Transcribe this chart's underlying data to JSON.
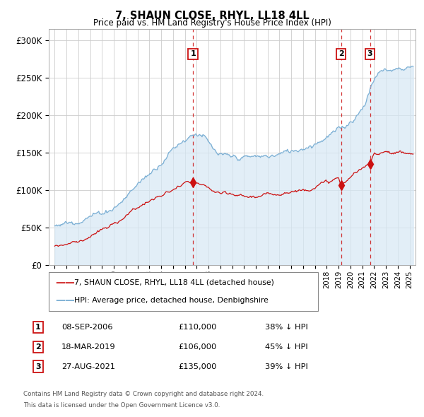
{
  "title": "7, SHAUN CLOSE, RHYL, LL18 4LL",
  "subtitle": "Price paid vs. HM Land Registry's House Price Index (HPI)",
  "hpi_color": "#7bafd4",
  "hpi_fill_color": "#d6e8f5",
  "price_color": "#cc1111",
  "dashed_line_color": "#cc1111",
  "background_color": "#ffffff",
  "grid_color": "#cccccc",
  "ylim": [
    0,
    315000
  ],
  "yticks": [
    0,
    50000,
    100000,
    150000,
    200000,
    250000,
    300000
  ],
  "ytick_labels": [
    "£0",
    "£50K",
    "£100K",
    "£150K",
    "£200K",
    "£250K",
    "£300K"
  ],
  "legend_label_price": "7, SHAUN CLOSE, RHYL, LL18 4LL (detached house)",
  "legend_label_hpi": "HPI: Average price, detached house, Denbighshire",
  "transactions": [
    {
      "label": "1",
      "date_str": "08-SEP-2006",
      "price": 110000,
      "pct": "38%",
      "direction": "↓",
      "x_year": 2006.69
    },
    {
      "label": "2",
      "date_str": "18-MAR-2019",
      "price": 106000,
      "pct": "45%",
      "direction": "↓",
      "x_year": 2019.21
    },
    {
      "label": "3",
      "date_str": "27-AUG-2021",
      "price": 135000,
      "pct": "39%",
      "direction": "↓",
      "x_year": 2021.65
    }
  ],
  "footer_line1": "Contains HM Land Registry data © Crown copyright and database right 2024.",
  "footer_line2": "This data is licensed under the Open Government Licence v3.0.",
  "xlim_start": 1994.5,
  "xlim_end": 2025.5
}
